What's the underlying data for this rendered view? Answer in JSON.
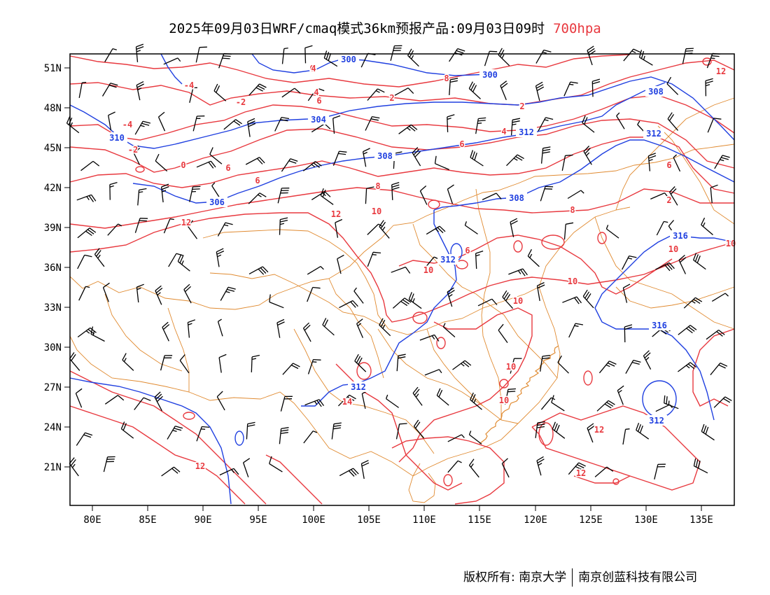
{
  "title": {
    "main": "2025年09月03日WRF/cmaq模式36km预报产品:09月03日09时",
    "level": "700hpa"
  },
  "colors": {
    "geopotential": "#2040e0",
    "temperature": "#e8393f",
    "border": "#e08a30",
    "wind": "#000000"
  },
  "axes": {
    "lat_labels": [
      "51N",
      "48N",
      "45N",
      "42N",
      "39N",
      "36N",
      "33N",
      "30N",
      "27N",
      "24N",
      "21N"
    ],
    "lon_labels": [
      "80E",
      "85E",
      "90E",
      "95E",
      "100E",
      "105E",
      "110E",
      "115E",
      "120E",
      "125E",
      "130E",
      "135E"
    ]
  },
  "geopotential_labels": [
    "300",
    "300",
    "304",
    "306",
    "308",
    "308",
    "308",
    "310",
    "312",
    "312",
    "312",
    "312",
    "316",
    "316",
    "312"
  ],
  "temperature_labels": [
    "-4",
    "-2",
    "0",
    "2",
    "4",
    "6",
    "2",
    "-4",
    "-2",
    "0",
    "4",
    "6",
    "6",
    "8",
    "6",
    "6",
    "12",
    "10",
    "12",
    "8",
    "10",
    "10",
    "10",
    "10",
    "10",
    "12",
    "14",
    "12",
    "12",
    "12",
    "2",
    "6",
    "6",
    "10",
    "10",
    "4",
    "8"
  ],
  "footer": {
    "left": "版权所有: 南京大学",
    "right": "南京创蓝科技有限公司"
  }
}
